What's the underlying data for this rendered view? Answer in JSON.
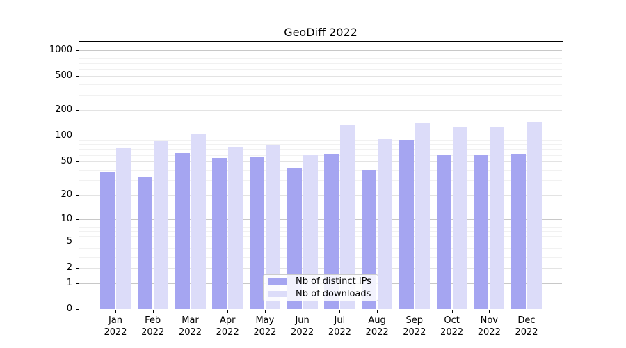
{
  "title": "GeoDiff 2022",
  "chart_data": {
    "type": "bar",
    "title": "GeoDiff 2022",
    "categories": [
      "Jan 2022",
      "Feb 2022",
      "Mar 2022",
      "Apr 2022",
      "May 2022",
      "Jun 2022",
      "Jul 2022",
      "Aug 2022",
      "Sep 2022",
      "Oct 2022",
      "Nov 2022",
      "Dec 2022"
    ],
    "series": [
      {
        "name": "Nb of distinct IPs",
        "color": "#a5a5f1",
        "values": [
          38,
          33,
          63,
          55,
          57,
          42,
          62,
          40,
          90,
          60,
          61,
          62
        ]
      },
      {
        "name": "Nb of downloads",
        "color": "#dcdcf9",
        "values": [
          73,
          87,
          104,
          74,
          78,
          61,
          137,
          91,
          140,
          128,
          126,
          147
        ]
      }
    ],
    "yscale": "log10(v+1)",
    "yticks": [
      0,
      1,
      2,
      5,
      10,
      20,
      50,
      100,
      200,
      500,
      1000
    ],
    "ylim": [
      0,
      1270
    ],
    "grid": "on",
    "legend_position": "lower center",
    "xlabel": "",
    "ylabel": ""
  },
  "colors": {
    "grid_major": "#c8c8c8",
    "grid_mid": "#e3e3e3",
    "grid_minor": "#f1f1f1",
    "axis": "#000000",
    "background": "#ffffff",
    "legend_border": "#cccccc"
  }
}
